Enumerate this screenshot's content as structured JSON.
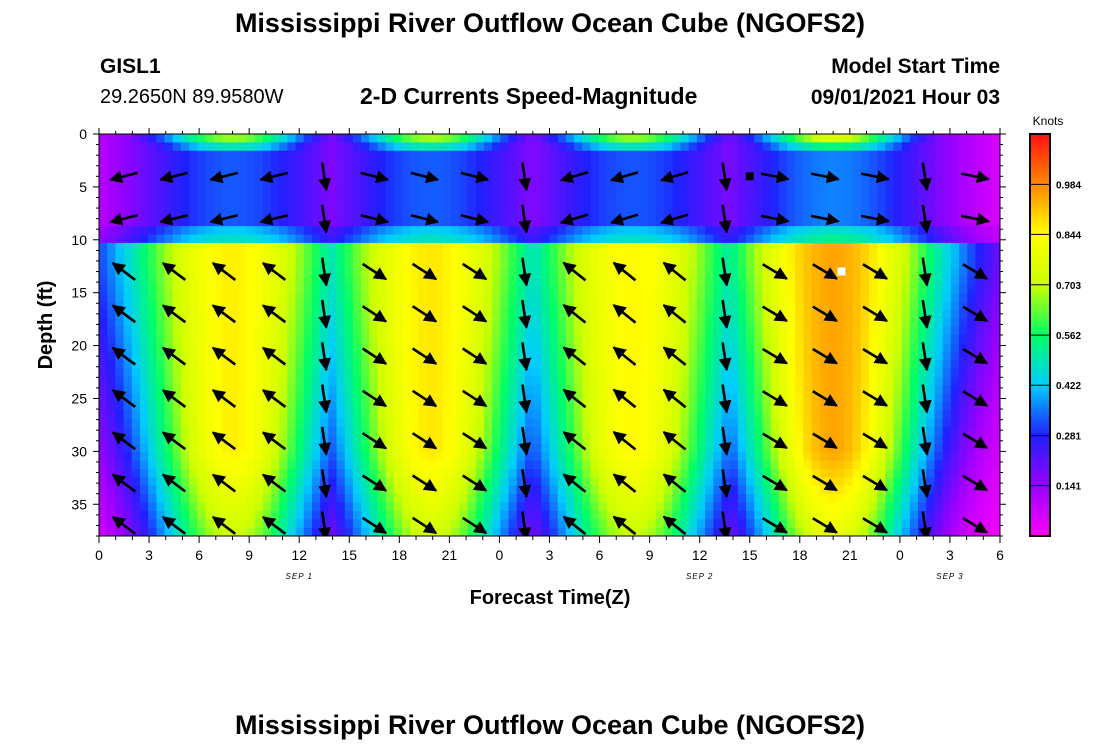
{
  "page": {
    "title_top": "Mississippi River Outflow Ocean Cube (NGOFS2)",
    "title_bottom": "Mississippi River Outflow Ocean Cube (NGOFS2)",
    "station_id": "GISL1",
    "station_coords": "29.2650N  89.9580W",
    "plot_subtitle": "2-D Currents Speed-Magnitude",
    "model_start_label": "Model Start Time",
    "model_start_value": "09/01/2021 Hour 03"
  },
  "chart_data": {
    "type": "heatmap",
    "title": "2-D Currents Speed-Magnitude",
    "xlabel": "Forecast Time(Z)",
    "ylabel": "Depth (ft)",
    "x_tick_labels": [
      "0",
      "3",
      "6",
      "9",
      "12",
      "15",
      "18",
      "21",
      "0",
      "3",
      "6",
      "9",
      "12",
      "15",
      "18",
      "21",
      "0",
      "3",
      "6"
    ],
    "x_range_hours": [
      0,
      54
    ],
    "date_labels": [
      {
        "text": "SEP 1",
        "hour": 12
      },
      {
        "text": "SEP 2",
        "hour": 36
      },
      {
        "text": "SEP 3",
        "hour": 51
      }
    ],
    "y_tick_labels": [
      "0",
      "5",
      "10",
      "15",
      "20",
      "25",
      "30",
      "35"
    ],
    "ylim": [
      0,
      38
    ],
    "y_inverted": true,
    "colorbar": {
      "unit": "Knots",
      "tick_labels": [
        "0.984",
        "0.844",
        "0.703",
        "0.562",
        "0.422",
        "0.281",
        "0.141"
      ],
      "tick_values": [
        0.984,
        0.844,
        0.703,
        0.562,
        0.422,
        0.281,
        0.141
      ],
      "range": [
        0.0,
        1.125
      ],
      "colors": [
        "#ff00ff",
        "#9900ff",
        "#2020ff",
        "#00ccff",
        "#00ff66",
        "#ccff00",
        "#ffff00",
        "#ff8800",
        "#ff1010"
      ]
    },
    "cycles": [
      {
        "center_hour": 8.0,
        "peak_knots": 0.86,
        "speed": 0.2,
        "vx": -1.0,
        "vy": -0.75,
        "surface_vx": -1.0,
        "surface_vy": 0.25
      },
      {
        "center_hour": 19.9,
        "peak_knots": 0.87,
        "speed": 1.0,
        "vx": 1.0,
        "vy": 0.65,
        "surface_vx": 1.0,
        "surface_vy": 0.25
      },
      {
        "center_hour": 32.0,
        "peak_knots": 0.85,
        "speed": 1.0,
        "vx": -1.0,
        "vy": -0.8,
        "surface_vx": -1.0,
        "surface_vy": 0.3
      },
      {
        "center_hour": 44.0,
        "peak_knots": 0.95,
        "speed": 1.0,
        "vx": 1.0,
        "vy": 0.6,
        "surface_vx": 1.0,
        "surface_vy": 0.2
      }
    ],
    "slack_hours": [
      14.2,
      26.3,
      38.0,
      50.0
    ],
    "peak_marker": {
      "hour": 44.5,
      "depth_ft": 13
    },
    "surface_marker": {
      "hour": 39.0,
      "depth_ft": 4
    }
  }
}
